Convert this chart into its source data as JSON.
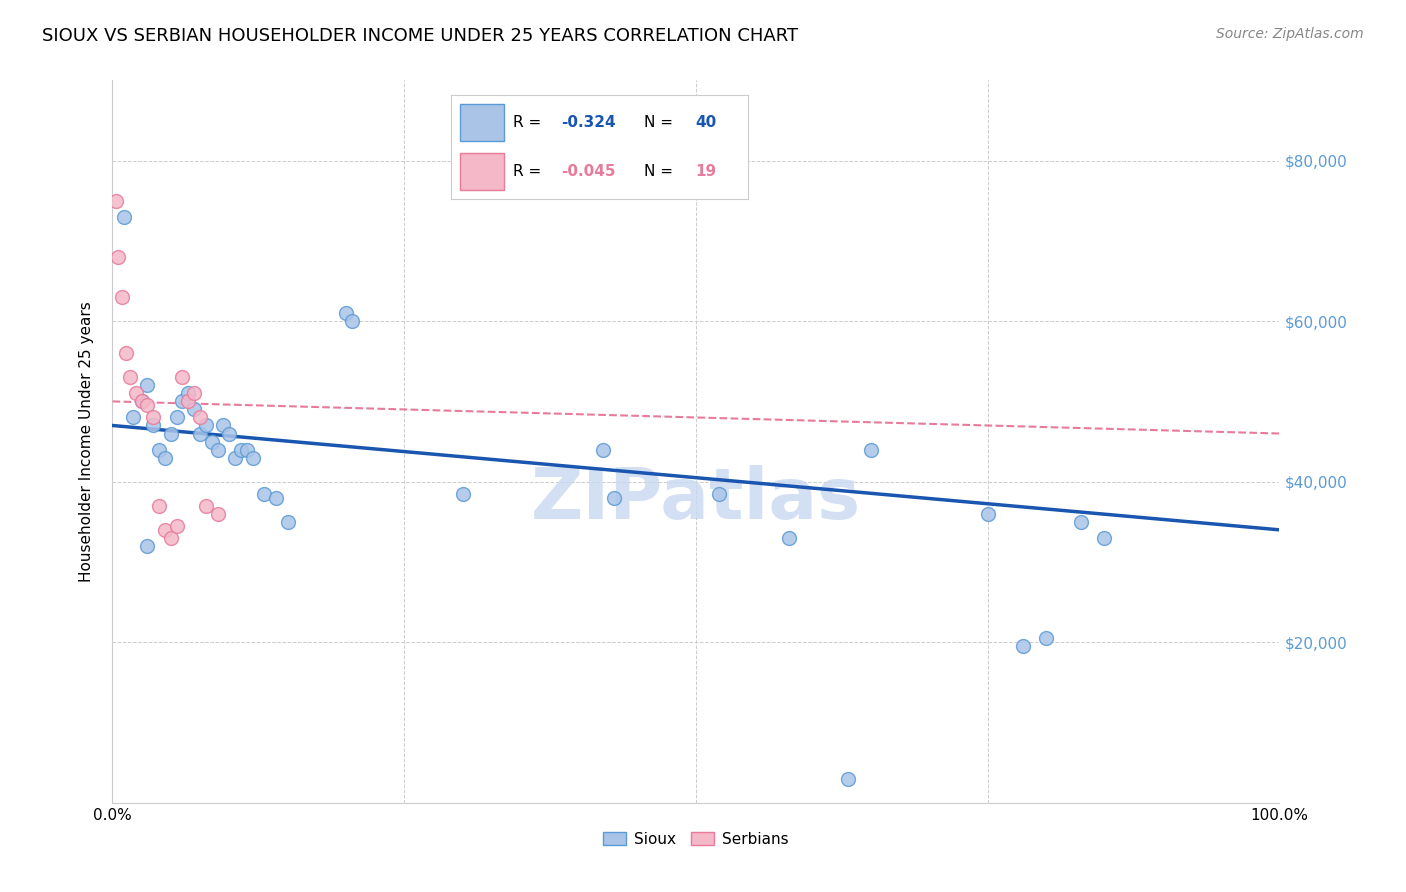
{
  "title": "SIOUX VS SERBIAN HOUSEHOLDER INCOME UNDER 25 YEARS CORRELATION CHART",
  "source": "Source: ZipAtlas.com",
  "ylabel": "Householder Income Under 25 years",
  "sioux_R": -0.324,
  "sioux_N": 40,
  "serbian_R": -0.045,
  "serbian_N": 19,
  "sioux_color": "#aac4e8",
  "sioux_edge_color": "#5b9bd5",
  "serbian_color": "#f4b8c8",
  "serbian_edge_color": "#e87a9a",
  "sioux_line_color": "#1a56b0",
  "serbian_line_color": "#e87a9a",
  "background_color": "#ffffff",
  "grid_color": "#cccccc",
  "right_axis_color": "#5b9bd5",
  "sioux_x": [
    1.0,
    1.8,
    2.5,
    3.0,
    3.5,
    4.0,
    4.5,
    5.0,
    5.5,
    6.0,
    6.5,
    7.0,
    7.5,
    8.0,
    8.5,
    9.0,
    9.5,
    10.0,
    10.5,
    11.0,
    11.5,
    12.0,
    13.0,
    14.0,
    15.0,
    20.0,
    20.5,
    30.0,
    42.0,
    43.0,
    52.0,
    58.0,
    65.0,
    75.0,
    78.0,
    80.0,
    83.0,
    85.0,
    63.0,
    3.0
  ],
  "sioux_y": [
    73000,
    48000,
    50000,
    52000,
    47000,
    44000,
    43000,
    46000,
    48000,
    50000,
    51000,
    49000,
    46000,
    47000,
    45000,
    44000,
    47000,
    46000,
    43000,
    44000,
    44000,
    43000,
    38500,
    38000,
    35000,
    61000,
    60000,
    38500,
    44000,
    38000,
    38500,
    33000,
    44000,
    36000,
    19500,
    20500,
    35000,
    33000,
    3000,
    32000
  ],
  "serbian_x": [
    0.3,
    0.5,
    0.8,
    1.2,
    1.5,
    2.0,
    2.5,
    3.0,
    3.5,
    4.0,
    4.5,
    5.0,
    5.5,
    6.0,
    6.5,
    7.0,
    7.5,
    8.0,
    9.0
  ],
  "serbian_y": [
    75000,
    68000,
    63000,
    56000,
    53000,
    51000,
    50000,
    49500,
    48000,
    37000,
    34000,
    33000,
    34500,
    53000,
    50000,
    51000,
    48000,
    37000,
    36000
  ],
  "xlim": [
    0.0,
    100.0
  ],
  "ylim": [
    0,
    90000
  ],
  "yticks": [
    0,
    20000,
    40000,
    60000,
    80000
  ],
  "ytick_labels_right": [
    "",
    "$20,000",
    "$40,000",
    "$60,000",
    "$80,000"
  ],
  "xticks": [
    0,
    25,
    50,
    75,
    100
  ],
  "xtick_labels": [
    "0.0%",
    "",
    "",
    "",
    "100.0%"
  ],
  "watermark": "ZIPatlas",
  "watermark_color": "#c8d8f0",
  "title_fontsize": 13,
  "label_fontsize": 11,
  "legend_fontsize": 11,
  "source_fontsize": 10,
  "marker_size": 100,
  "sioux_line_y0": 47000,
  "sioux_line_y1": 34000,
  "serbian_line_y0": 50000,
  "serbian_line_y1": 46000
}
